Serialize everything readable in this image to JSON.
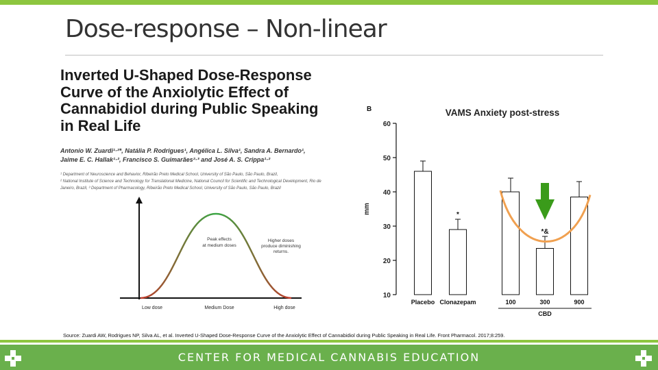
{
  "slide": {
    "title": "Dose-response – Non-linear",
    "source": "Source: Zuardi AW, Rodrigues NP, Silva AL, et al. Inverted U-Shaped Dose-Response Curve of the Anxiolytic Effect of Cannabidiol during Public Speaking in Real Life. Front Pharmacol. 2017;8:259."
  },
  "paper": {
    "title_lines": [
      "Inverted U-Shaped Dose-Response",
      "Curve of the Anxiolytic Effect of",
      "Cannabidiol during Public Speaking",
      "in Real Life"
    ],
    "authors_line1": "Antonio W. Zuardi¹·²*, Natália P. Rodrigues¹, Angélica L. Silva¹, Sandra A. Bernardo¹,",
    "authors_line2": "Jaime E. C. Hallak¹·², Francisco S. Guimarães²·³ and José A. S. Crippa¹·²",
    "affil1": "¹ Department of Neuroscience and Behavior, Ribeirão Preto Medical School, University of São Paulo, São Paulo, Brazil,",
    "affil2": "² National Institute of Science and Technology for Translational Medicine, National Council for Scientific and Technological Development, Rio de Janeiro, Brazil, ³ Department of Pharmacology, Ribeirão Preto Medical School, University of São Paulo, São Paulo, Brazil"
  },
  "curve_diagram": {
    "peak_label_1": "Peak effects",
    "peak_label_2": "at medium doses",
    "high_label_1": "Higher doses",
    "high_label_2": "produce diminishing",
    "high_label_3": "returns.",
    "x_low": "Low dose",
    "x_mid": "Medium Dose",
    "x_high": "High dose",
    "color_low": "#c0392b",
    "color_peak": "#3aa845"
  },
  "chart_data": {
    "type": "bar",
    "panel_label": "B",
    "title": "VAMS Anxiety post-stress",
    "ylabel": "mm",
    "ylim": [
      10,
      60
    ],
    "yticks": [
      "60",
      "50",
      "40",
      "30",
      "20",
      "10"
    ],
    "categories": [
      "Placebo",
      "Clonazepam",
      "100",
      "300",
      "900"
    ],
    "values": [
      46,
      29,
      40,
      23.5,
      38.5
    ],
    "errors": [
      3,
      3,
      4,
      3.5,
      4.5
    ],
    "annotations": [
      "",
      "*",
      "",
      "*&",
      ""
    ],
    "group_label": "CBD",
    "curve_color": "#f0a050",
    "arrow_color": "#3a9b1a"
  },
  "footer": {
    "text": "CENTER FOR MEDICAL CANNABIS EDUCATION",
    "color": "#6ab04c"
  }
}
